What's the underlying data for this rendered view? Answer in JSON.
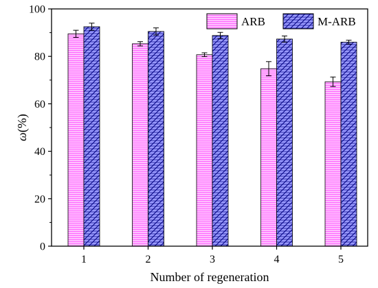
{
  "chart_data": {
    "type": "bar",
    "title": "",
    "xlabel": "Number of regeneration",
    "ylabel_symbol": "ω",
    "ylabel_unit": "(%)",
    "categories": [
      "1",
      "2",
      "3",
      "4",
      "5"
    ],
    "ylim": [
      0,
      100
    ],
    "yticks": [
      "0",
      "20",
      "40",
      "60",
      "80",
      "100"
    ],
    "grid": false,
    "legend_position": "top-right",
    "series": [
      {
        "name": "ARB",
        "values": [
          89.5,
          85.3,
          80.7,
          74.8,
          69.3
        ],
        "errors": [
          1.5,
          0.9,
          0.8,
          3.0,
          2.0
        ],
        "fill_color": "#ffbfff",
        "pattern": "horizontal-lines",
        "pattern_color": "#ff66ff"
      },
      {
        "name": "M-ARB",
        "values": [
          92.5,
          90.5,
          88.8,
          87.3,
          86.0
        ],
        "errors": [
          1.5,
          1.5,
          1.3,
          1.3,
          0.8
        ],
        "fill_color": "#9999ff",
        "pattern": "diagonal-horizontal-lines",
        "pattern_color": "#000080"
      }
    ]
  }
}
